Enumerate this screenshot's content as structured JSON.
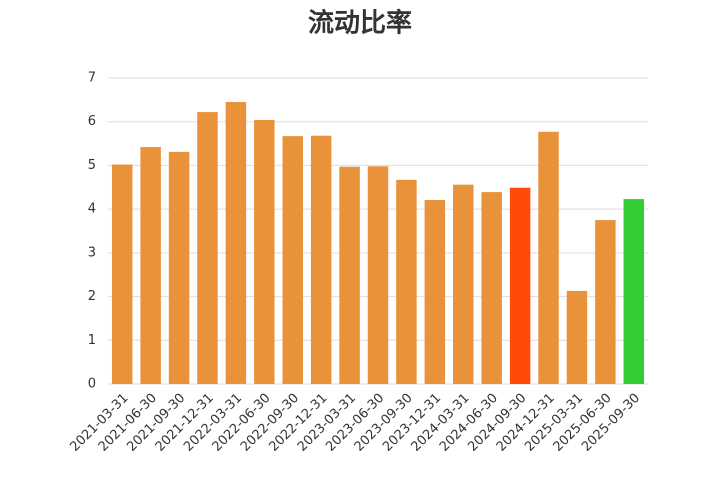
{
  "chart_data": {
    "type": "bar",
    "title": "流动比率",
    "categories": [
      "2021-03-31",
      "2021-06-30",
      "2021-09-30",
      "2021-12-31",
      "2022-03-31",
      "2022-06-30",
      "2022-09-30",
      "2022-12-31",
      "2023-03-31",
      "2023-06-30",
      "2023-09-30",
      "2023-12-31",
      "2024-03-31",
      "2024-06-30",
      "2024-09-30",
      "2024-12-31",
      "2025-03-31",
      "2025-06-30",
      "2025-09-30"
    ],
    "values": [
      5.02,
      5.42,
      5.31,
      6.22,
      6.45,
      6.04,
      5.67,
      5.68,
      4.97,
      4.98,
      4.67,
      4.21,
      4.56,
      4.39,
      4.49,
      5.77,
      2.13,
      3.75,
      4.23
    ],
    "colors": [
      "#e8923a",
      "#e8923a",
      "#e8923a",
      "#e8923a",
      "#e8923a",
      "#e8923a",
      "#e8923a",
      "#e8923a",
      "#e8923a",
      "#e8923a",
      "#e8923a",
      "#e8923a",
      "#e8923a",
      "#e8923a",
      "#ff4a0a",
      "#e8923a",
      "#e8923a",
      "#e8923a",
      "#33cc33"
    ],
    "ylim": [
      0,
      7
    ],
    "yticks": [
      0,
      1,
      2,
      3,
      4,
      5,
      6,
      7
    ],
    "grid": true
  }
}
